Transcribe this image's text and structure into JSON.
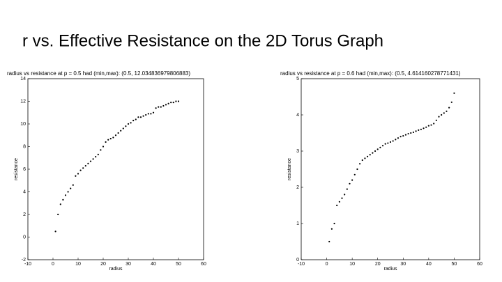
{
  "title": "r vs. Effective Resistance on the 2D Torus Graph",
  "chart_data": [
    {
      "type": "scatter",
      "title": "radius vs resistance at p = 0.5 had (min,max): (0.5, 12.034836979806883)",
      "x_label": "radius",
      "y_label": "resistance",
      "color": "#000000",
      "xlim": [
        -10,
        60
      ],
      "xticks": [
        -10,
        0,
        10,
        20,
        30,
        40,
        50,
        60
      ],
      "ylim": [
        -2,
        14
      ],
      "yticks": [
        -2,
        0,
        2,
        4,
        6,
        8,
        10,
        12,
        14
      ],
      "x": [
        1,
        2,
        3,
        4,
        5,
        6,
        7,
        8,
        9,
        10,
        11,
        12,
        13,
        14,
        15,
        16,
        17,
        18,
        19,
        20,
        21,
        22,
        23,
        24,
        25,
        26,
        27,
        28,
        29,
        30,
        31,
        32,
        33,
        34,
        35,
        36,
        37,
        38,
        39,
        40,
        41,
        42,
        43,
        44,
        45,
        46,
        47,
        48,
        49,
        50
      ],
      "values": [
        0.5,
        2,
        2.9,
        3.3,
        3.7,
        4.0,
        4.3,
        4.6,
        5.4,
        5.6,
        5.9,
        6.1,
        6.3,
        6.5,
        6.7,
        6.9,
        7.1,
        7.3,
        7.7,
        8.0,
        8.4,
        8.6,
        8.7,
        8.8,
        9.0,
        9.2,
        9.4,
        9.6,
        9.8,
        10.0,
        10.1,
        10.3,
        10.4,
        10.6,
        10.6,
        10.7,
        10.8,
        10.9,
        10.9,
        11.0,
        11.4,
        11.5,
        11.5,
        11.6,
        11.7,
        11.8,
        11.9,
        11.9,
        12.0,
        12.0
      ]
    },
    {
      "type": "scatter",
      "title": "radius vs resistance at p = 0.6 had (min,max): (0.5, 4.614160278771431)",
      "x_label": "radius",
      "y_label": "resistance",
      "color": "#000000",
      "xlim": [
        -10,
        60
      ],
      "xticks": [
        -10,
        0,
        10,
        20,
        30,
        40,
        50,
        60
      ],
      "ylim": [
        0,
        5
      ],
      "yticks": [
        0,
        1,
        2,
        3,
        4,
        5
      ],
      "x": [
        1,
        2,
        3,
        4,
        5,
        6,
        7,
        8,
        9,
        10,
        11,
        12,
        13,
        14,
        15,
        16,
        17,
        18,
        19,
        20,
        21,
        22,
        23,
        24,
        25,
        26,
        27,
        28,
        29,
        30,
        31,
        32,
        33,
        34,
        35,
        36,
        37,
        38,
        39,
        40,
        41,
        42,
        43,
        44,
        45,
        46,
        47,
        48,
        49,
        50
      ],
      "values": [
        0.5,
        0.85,
        1.0,
        1.5,
        1.6,
        1.7,
        1.8,
        1.95,
        2.1,
        2.2,
        2.35,
        2.5,
        2.65,
        2.75,
        2.8,
        2.85,
        2.9,
        2.95,
        3.0,
        3.05,
        3.1,
        3.15,
        3.2,
        3.22,
        3.25,
        3.28,
        3.32,
        3.36,
        3.4,
        3.42,
        3.45,
        3.48,
        3.5,
        3.52,
        3.55,
        3.58,
        3.6,
        3.63,
        3.66,
        3.7,
        3.72,
        3.76,
        3.85,
        3.95,
        4.0,
        4.05,
        4.1,
        4.2,
        4.35,
        4.6
      ]
    }
  ]
}
